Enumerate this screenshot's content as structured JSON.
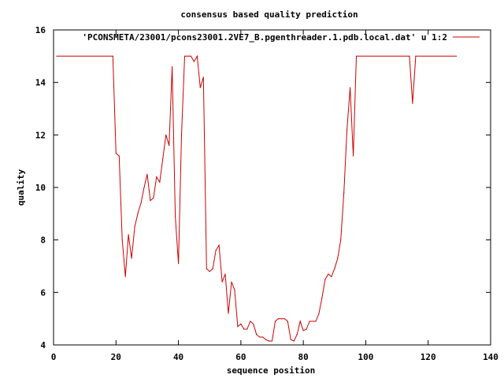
{
  "chart_data": {
    "type": "line",
    "title": "consensus based quality prediction",
    "xlabel": "sequence position",
    "ylabel": "quality",
    "xlim": [
      0,
      140
    ],
    "ylim": [
      4,
      16
    ],
    "xticks": [
      0,
      20,
      40,
      60,
      80,
      100,
      120,
      140
    ],
    "yticks": [
      4,
      6,
      8,
      10,
      12,
      14,
      16
    ],
    "grid": false,
    "legend_position": "top-right",
    "series": [
      {
        "name": "'PCONSMETA/23001/pcons23001.2VE7_B.pgenthreader.1.pdb.local.dat' u 1:2",
        "color": "#cc0000",
        "x": [
          1,
          19,
          20,
          21,
          22,
          23,
          24,
          25,
          26,
          27,
          28,
          29,
          30,
          31,
          32,
          33,
          34,
          35,
          36,
          37,
          38,
          39,
          40,
          41,
          42,
          43,
          44,
          45,
          46,
          47,
          48,
          49,
          50,
          51,
          52,
          53,
          54,
          55,
          56,
          57,
          58,
          59,
          60,
          61,
          62,
          63,
          64,
          65,
          66,
          67,
          68,
          69,
          70,
          71,
          72,
          73,
          74,
          75,
          76,
          77,
          78,
          79,
          80,
          81,
          82,
          83,
          84,
          85,
          86,
          87,
          88,
          89,
          90,
          91,
          92,
          93,
          94,
          95,
          96,
          97,
          114,
          115,
          116,
          129
        ],
        "y": [
          15,
          15,
          11.3,
          11.2,
          8.0,
          6.6,
          8.2,
          7.3,
          8.5,
          9.0,
          9.4,
          10.0,
          10.5,
          9.5,
          9.6,
          10.4,
          10.2,
          11.1,
          12.0,
          11.6,
          14.6,
          8.9,
          7.1,
          12.0,
          15,
          15,
          15,
          14.8,
          15,
          13.8,
          14.2,
          6.9,
          6.8,
          6.9,
          7.6,
          7.8,
          6.4,
          6.7,
          5.2,
          6.4,
          6.1,
          4.7,
          4.8,
          4.6,
          4.6,
          4.9,
          4.8,
          4.4,
          4.3,
          4.3,
          4.2,
          4.15,
          4.15,
          4.9,
          5.0,
          5.0,
          5.0,
          4.9,
          4.2,
          4.15,
          4.4,
          4.9,
          4.55,
          4.6,
          4.9,
          4.9,
          4.9,
          5.2,
          5.8,
          6.5,
          6.7,
          6.6,
          6.9,
          7.3,
          8.0,
          9.8,
          12.2,
          13.8,
          11.2,
          15,
          15,
          13.2,
          15,
          15
        ]
      }
    ]
  }
}
